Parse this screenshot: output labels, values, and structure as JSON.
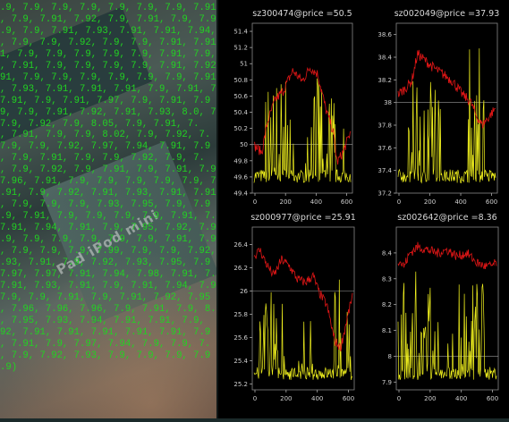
{
  "terminal": {
    "lines": [
      ".9, 7.9, 7.9, 7.9, 7.9, 7.9, 7.9, 7.91,",
      ", 7.9, 7.91, 7.92, 7.9, 7.91, 7.9, 7.9",
      ".9, 7.9, 7.91, 7.93, 7.91, 7.91, 7.94,",
      ", 7.9, 7.9, 7.92, 7.9, 7.9, 7.91, 7.91",
      "1, 7.9, 7.9, 7.9, 7.9, 7.9, 7.91, 7.9,",
      ", 7.91, 7.9, 7.9, 7.9, 7.9, 7.91, 7.92,",
      "91, 7.9, 7.9, 7.9, 7.9, 7.9, 7.9, 7.91",
      ", 7.93, 7.91, 7.91, 7.91, 7.9, 7.91, 7.9",
      "7.91, 7.9, 7.91, 7.97, 7.9, 7.91, 7.9",
      "9, 7.9, 7.91, 7.92, 7.91, 7.93, 8.0, 7.9",
      "7.9, 7.92, 7.9, 8.05, 7.9, 7.91, 7.",
      ", 7.91, 7.9, 7.9, 8.02, 7.9, 7.92, 7.",
      "7.9, 7.9, 7.92, 7.97, 7.94, 7.91, 7.9",
      ", 7.9, 7.91, 7.9, 7.9, 7.92, 7.9, 7.",
      ", 7.9, 7.92, 7.9, 7.91, 7.9, 7.91, 7.9",
      "7.96, 7.91, 7.9, 7.9, 7.9, 7.9, 7.9, 7.",
      ".91, 7.9, 7.92, 7.91, 7.93, 7.91, 7.91,",
      ", 7.9, 7.9, 7.9, 7.93, 7.95, 7.9, 7.9",
      ".9, 7.91, 7.9, 7.9, 7.9, 7.9, 7.91, 7.",
      "7.91, 7.94, 7.91, 7.9, 7.95, 7.92, 7.9,",
      ".9, 7.9, 7.9, 7.9, 7.9, 7.9, 7.91, 7.9",
      ", 7.9, 7.9, 7.9, 7.99, 7.9, 7.9, 7.92,",
      ".93, 7.91, 7.9, 7.92, 7.93, 7.95, 7.9",
      "7.97, 7.97, 7.91, 7.94, 7.98, 7.91, 7.",
      "7.91, 7.93, 7.91, 7.9, 7.91, 7.94, 7.91",
      "7.9, 7.9, 7.91, 7.9, 7.91, 7.92, 7.95",
      ", 7.96, 7.96, 7.96, 7.9, 7.91, 7.9, 8.",
      ", 7.95, 7.93, 7.94, 7.91, 7.91, 7.9,",
      "92, 7.91, 7.91, 7.91, 7.91, 7.91, 7.9",
      ", 7.91, 7.9, 7.97, 7.94, 7.9, 7.9, 7.",
      ", 7.9, 7.92, 7.93, 7.9, 7.9, 7.9, 7.9",
      ".9)"
    ]
  },
  "background": {
    "logo_text": "Pad iPod mini"
  },
  "charts": [
    {
      "title": "sz300474@price =50.5",
      "ylim": [
        49.4,
        51.5
      ],
      "yticks": [
        "49.4",
        "49.6",
        "49.8",
        "50",
        "50.2",
        "50.4",
        "50.6",
        "50.8",
        "51",
        "51.2",
        "51.4"
      ],
      "hline": 50.0
    },
    {
      "title": "sz002049@price =37.93",
      "ylim": [
        37.2,
        38.7
      ],
      "yticks": [
        "37.2",
        "37.4",
        "37.6",
        "37.8",
        "38",
        "38.2",
        "38.4",
        "38.6"
      ],
      "hline": 38.0
    },
    {
      "title": "sz000977@price =25.91",
      "ylim": [
        25.15,
        26.55
      ],
      "yticks": [
        "25.2",
        "25.4",
        "25.6",
        "25.8",
        "26",
        "26.2",
        "26.4"
      ],
      "hline": 26.0
    },
    {
      "title": "sz002642@price =8.36",
      "ylim": [
        7.87,
        8.5
      ],
      "yticks": [
        "7.9",
        "8",
        "8.1",
        "8.2",
        "8.3",
        "8.4"
      ],
      "hline": 8.0
    }
  ],
  "xticks": [
    "0",
    "200",
    "400",
    "600"
  ],
  "colors": {
    "price_line": "#e01616",
    "volume_line": "#f0f01e",
    "terminal_text": "#22d322",
    "plot_background": "#000000"
  }
}
